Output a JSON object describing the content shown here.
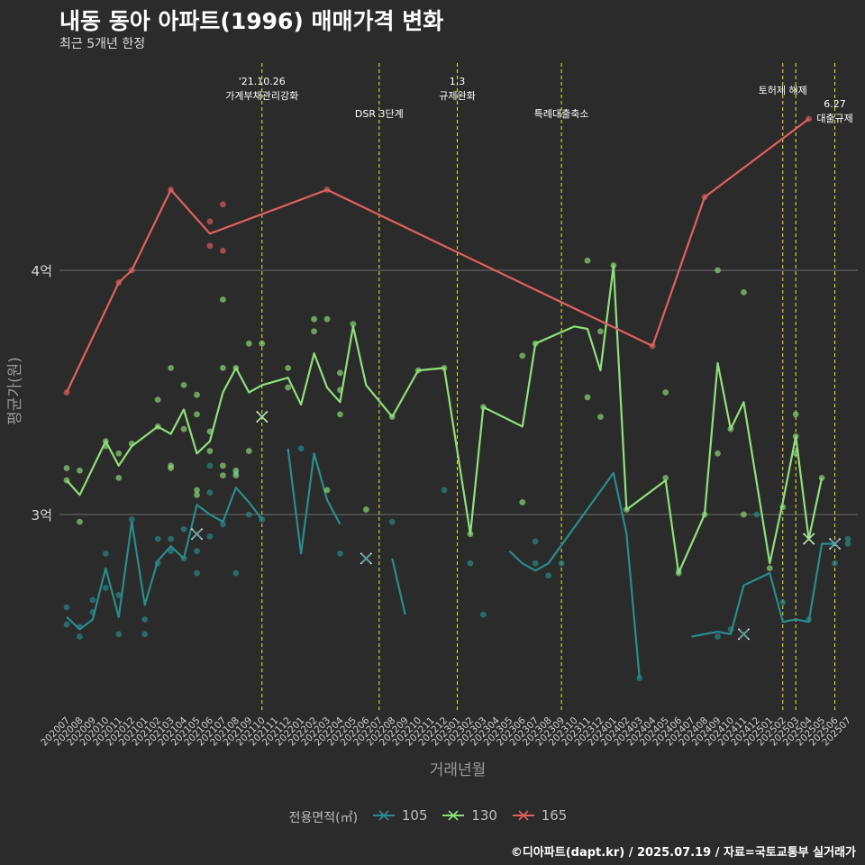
{
  "title": "내동 동아 아파트(1996) 매매가격 변화",
  "subtitle": "최근 5개년 한정",
  "footer": "©디아파트(dapt.kr) / 2025.07.19 / 자료=국토교통부 실거래가",
  "colors": {
    "background": "#2b2b2b",
    "s105": "#2a8c8c",
    "s130": "#8fe07a",
    "s165": "#e06060",
    "event_line": "#e8e83c"
  },
  "chart_data": {
    "type": "line",
    "xlabel": "거래년월",
    "ylabel": "평균가(원)",
    "ylim": [
      2.2,
      4.8
    ],
    "yticks": [
      {
        "value": 3,
        "label": "3억"
      },
      {
        "value": 4,
        "label": "4억"
      }
    ],
    "grid": true,
    "legend_title": "전용면적(㎡)",
    "legend_position": "bottom",
    "x": [
      "202007",
      "202008",
      "202009",
      "202010",
      "202011",
      "202012",
      "202101",
      "202102",
      "202103",
      "202104",
      "202105",
      "202106",
      "202107",
      "202108",
      "202109",
      "202110",
      "202111",
      "202112",
      "202201",
      "202202",
      "202203",
      "202204",
      "202205",
      "202206",
      "202207",
      "202208",
      "202209",
      "202210",
      "202211",
      "202212",
      "202301",
      "202302",
      "202303",
      "202304",
      "202305",
      "202306",
      "202307",
      "202308",
      "202309",
      "202310",
      "202311",
      "202312",
      "202401",
      "202402",
      "202403",
      "202404",
      "202405",
      "202406",
      "202407",
      "202408",
      "202409",
      "202410",
      "202411",
      "202412",
      "202501",
      "202502",
      "202503",
      "202504",
      "202505",
      "202506",
      "202507"
    ],
    "events": [
      {
        "x": "202110",
        "label": "'21.10.26\n가계부채관리강화",
        "row": 1
      },
      {
        "x": "202207",
        "label": "DSR 3단계",
        "row": 2
      },
      {
        "x": "202301",
        "label": "1.3\n규제완화",
        "row": 1
      },
      {
        "x": "202309",
        "label": "특례대출축소",
        "row": 2
      },
      {
        "x": "202502",
        "label": "토허제 해제",
        "row": 0
      },
      {
        "x": "202503",
        "label": "",
        "row": 0
      },
      {
        "x": "202506",
        "label": "6.27\n대출규제",
        "row": 3
      }
    ],
    "series": [
      {
        "name": "105",
        "color": "#2a8c8c",
        "line": [
          [
            "202007",
            2.58
          ],
          [
            "202008",
            2.53
          ],
          [
            "202009",
            2.57
          ],
          [
            "202010",
            2.78
          ],
          [
            "202011",
            2.58
          ],
          [
            "202012",
            2.97
          ],
          [
            "202101",
            2.63
          ],
          [
            "202102",
            2.81
          ],
          [
            "202103",
            2.87
          ],
          [
            "202104",
            2.82
          ],
          [
            "202105",
            3.04
          ],
          [
            "202106",
            3.0
          ],
          [
            "202107",
            2.97
          ],
          [
            "202108",
            3.11
          ],
          [
            "202109",
            3.05
          ],
          [
            "202110",
            2.98
          ],
          null,
          [
            "202112",
            3.27
          ],
          [
            "202201",
            2.84
          ],
          [
            "202202",
            3.25
          ],
          [
            "202203",
            3.06
          ],
          [
            "202204",
            2.96
          ],
          null,
          [
            "202208",
            2.82
          ],
          [
            "202209",
            2.59
          ],
          null,
          [
            "202305",
            2.85
          ],
          [
            "202306",
            2.8
          ],
          [
            "202307",
            2.77
          ],
          [
            "202308",
            2.8
          ],
          [
            "202401",
            3.17
          ],
          [
            "202402",
            2.92
          ],
          [
            "202403",
            2.33
          ],
          null,
          [
            "202407",
            2.5
          ],
          [
            "202409",
            2.52
          ],
          [
            "202410",
            2.51
          ],
          [
            "202411",
            2.71
          ],
          [
            "202501",
            2.76
          ],
          [
            "202502",
            2.56
          ],
          [
            "202503",
            2.57
          ],
          [
            "202504",
            2.56
          ],
          [
            "202505",
            2.88
          ],
          [
            "202506",
            2.88
          ]
        ],
        "points": [
          [
            "202007",
            2.55
          ],
          [
            "202007",
            2.62
          ],
          [
            "202008",
            2.5
          ],
          [
            "202008",
            2.54
          ],
          [
            "202009",
            2.6
          ],
          [
            "202009",
            2.65
          ],
          [
            "202010",
            2.7
          ],
          [
            "202010",
            2.84
          ],
          [
            "202011",
            2.51
          ],
          [
            "202011",
            2.67
          ],
          [
            "202012",
            2.98
          ],
          [
            "202101",
            2.57
          ],
          [
            "202101",
            2.51
          ],
          [
            "202102",
            2.8
          ],
          [
            "202102",
            2.9
          ],
          [
            "202103",
            2.9
          ],
          [
            "202103",
            2.85
          ],
          [
            "202104",
            2.82
          ],
          [
            "202104",
            2.94
          ],
          [
            "202105",
            2.76
          ],
          [
            "202105",
            2.85
          ],
          [
            "202106",
            2.91
          ],
          [
            "202106",
            3.09
          ],
          [
            "202106",
            3.2
          ],
          [
            "202107",
            2.96
          ],
          [
            "202108",
            2.76
          ],
          [
            "202108",
            3.17
          ],
          [
            "202109",
            3.0
          ],
          [
            "202110",
            2.98
          ],
          [
            "202201",
            3.27
          ],
          [
            "202204",
            2.84
          ],
          [
            "202208",
            2.97
          ],
          [
            "202212",
            3.1
          ],
          [
            "202302",
            2.8
          ],
          [
            "202303",
            2.59
          ],
          [
            "202307",
            2.8
          ],
          [
            "202307",
            2.89
          ],
          [
            "202308",
            2.75
          ],
          [
            "202309",
            2.8
          ],
          [
            "202403",
            2.33
          ],
          [
            "202406",
            2.77
          ],
          [
            "202409",
            2.5
          ],
          [
            "202410",
            2.53
          ],
          [
            "202412",
            3.0
          ],
          [
            "202502",
            2.64
          ],
          [
            "202504",
            2.57
          ],
          [
            "202506",
            2.8
          ],
          [
            "202507",
            2.9
          ],
          [
            "202507",
            2.88
          ]
        ],
        "crosses": [
          [
            "202105",
            2.92
          ],
          [
            "202206",
            2.82
          ],
          [
            "202411",
            2.51
          ],
          [
            "202506",
            2.88
          ]
        ]
      },
      {
        "name": "130",
        "color": "#8fe07a",
        "line": [
          [
            "202007",
            3.14
          ],
          [
            "202008",
            3.08
          ],
          [
            "202010",
            3.3
          ],
          [
            "202011",
            3.2
          ],
          [
            "202012",
            3.28
          ],
          [
            "202102",
            3.36
          ],
          [
            "202103",
            3.33
          ],
          [
            "202104",
            3.43
          ],
          [
            "202105",
            3.25
          ],
          [
            "202106",
            3.3
          ],
          [
            "202107",
            3.5
          ],
          [
            "202108",
            3.6
          ],
          [
            "202109",
            3.5
          ],
          [
            "202110",
            3.53
          ],
          [
            "202112",
            3.56
          ],
          [
            "202201",
            3.45
          ],
          [
            "202202",
            3.66
          ],
          [
            "202203",
            3.52
          ],
          [
            "202204",
            3.46
          ],
          [
            "202205",
            3.77
          ],
          [
            "202206",
            3.53
          ],
          [
            "202208",
            3.4
          ],
          [
            "202210",
            3.59
          ],
          [
            "202212",
            3.6
          ],
          [
            "202302",
            2.92
          ],
          [
            "202303",
            3.44
          ],
          [
            "202306",
            3.36
          ],
          [
            "202307",
            3.7
          ],
          [
            "202310",
            3.77
          ],
          [
            "202311",
            3.76
          ],
          [
            "202312",
            3.59
          ],
          [
            "202401",
            4.02
          ],
          [
            "202402",
            3.02
          ],
          [
            "202405",
            3.14
          ],
          [
            "202406",
            2.76
          ],
          [
            "202408",
            3.0
          ],
          [
            "202409",
            3.62
          ],
          [
            "202410",
            3.35
          ],
          [
            "202411",
            3.46
          ],
          [
            "202501",
            2.8
          ],
          [
            "202502",
            3.05
          ],
          [
            "202503",
            3.32
          ],
          [
            "202504",
            2.9
          ],
          [
            "202505",
            3.15
          ]
        ],
        "points": [
          [
            "202007",
            3.19
          ],
          [
            "202007",
            3.14
          ],
          [
            "202008",
            3.18
          ],
          [
            "202008",
            2.97
          ],
          [
            "202010",
            3.3
          ],
          [
            "202010",
            3.28
          ],
          [
            "202011",
            3.25
          ],
          [
            "202011",
            3.15
          ],
          [
            "202012",
            3.29
          ],
          [
            "202102",
            3.47
          ],
          [
            "202102",
            3.36
          ],
          [
            "202103",
            3.2
          ],
          [
            "202103",
            3.19
          ],
          [
            "202103",
            3.6
          ],
          [
            "202104",
            3.53
          ],
          [
            "202104",
            3.35
          ],
          [
            "202105",
            3.41
          ],
          [
            "202105",
            3.1
          ],
          [
            "202105",
            3.08
          ],
          [
            "202105",
            3.49
          ],
          [
            "202106",
            3.34
          ],
          [
            "202106",
            3.26
          ],
          [
            "202107",
            3.2
          ],
          [
            "202107",
            3.16
          ],
          [
            "202107",
            3.6
          ],
          [
            "202107",
            3.88
          ],
          [
            "202108",
            3.6
          ],
          [
            "202108",
            3.16
          ],
          [
            "202108",
            3.18
          ],
          [
            "202109",
            3.7
          ],
          [
            "202109",
            3.26
          ],
          [
            "202110",
            3.7
          ],
          [
            "202112",
            3.52
          ],
          [
            "202112",
            3.6
          ],
          [
            "202202",
            3.8
          ],
          [
            "202202",
            3.75
          ],
          [
            "202203",
            3.8
          ],
          [
            "202203",
            3.1
          ],
          [
            "202204",
            3.51
          ],
          [
            "202204",
            3.41
          ],
          [
            "202204",
            3.58
          ],
          [
            "202205",
            3.78
          ],
          [
            "202206",
            3.02
          ],
          [
            "202208",
            3.4
          ],
          [
            "202210",
            3.59
          ],
          [
            "202212",
            3.6
          ],
          [
            "202302",
            2.92
          ],
          [
            "202303",
            3.44
          ],
          [
            "202306",
            3.05
          ],
          [
            "202306",
            3.65
          ],
          [
            "202307",
            3.7
          ],
          [
            "202311",
            3.48
          ],
          [
            "202311",
            4.04
          ],
          [
            "202312",
            3.4
          ],
          [
            "202312",
            3.75
          ],
          [
            "202401",
            4.02
          ],
          [
            "202402",
            3.02
          ],
          [
            "202405",
            3.5
          ],
          [
            "202405",
            3.15
          ],
          [
            "202406",
            2.76
          ],
          [
            "202408",
            3.0
          ],
          [
            "202409",
            3.25
          ],
          [
            "202409",
            4.0
          ],
          [
            "202410",
            3.35
          ],
          [
            "202411",
            3.91
          ],
          [
            "202411",
            3.0
          ],
          [
            "202501",
            2.78
          ],
          [
            "202502",
            3.03
          ],
          [
            "202503",
            3.32
          ],
          [
            "202503",
            3.41
          ],
          [
            "202503",
            3.25
          ],
          [
            "202505",
            3.15
          ]
        ],
        "crosses": [
          [
            "202110",
            3.4
          ],
          [
            "202504",
            2.9
          ]
        ]
      },
      {
        "name": "165",
        "color": "#e06060",
        "line": [
          [
            "202007",
            3.5
          ],
          [
            "202011",
            3.95
          ],
          [
            "202012",
            4.0
          ],
          [
            "202103",
            4.33
          ],
          [
            "202106",
            4.15
          ],
          [
            "202203",
            4.33
          ],
          [
            "202404",
            3.69
          ],
          [
            "202408",
            4.3
          ],
          [
            "202504",
            4.62
          ]
        ],
        "points": [
          [
            "202007",
            3.5
          ],
          [
            "202011",
            3.95
          ],
          [
            "202012",
            4.0
          ],
          [
            "202103",
            4.33
          ],
          [
            "202106",
            4.2
          ],
          [
            "202106",
            4.1
          ],
          [
            "202107",
            4.27
          ],
          [
            "202107",
            4.08
          ],
          [
            "202203",
            4.33
          ],
          [
            "202404",
            3.69
          ],
          [
            "202408",
            4.3
          ],
          [
            "202504",
            4.62
          ]
        ],
        "crosses": []
      }
    ]
  }
}
